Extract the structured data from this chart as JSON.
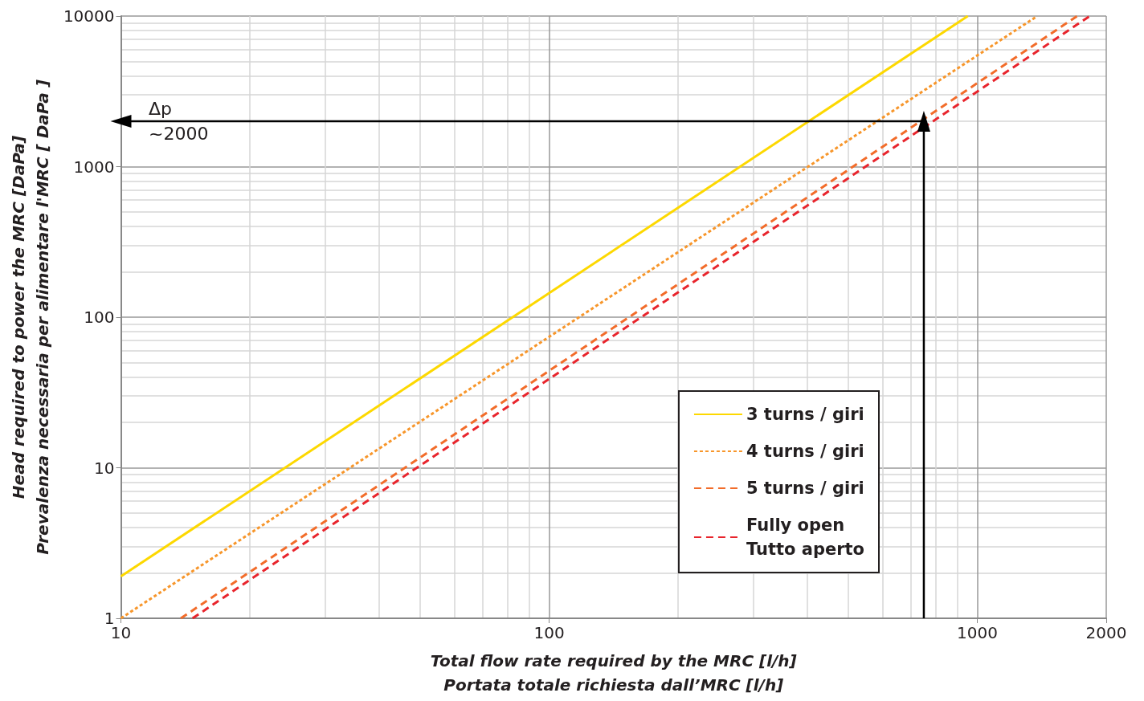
{
  "chart_data": {
    "type": "line",
    "xlabel": "Total flow rate required by the MRC [l/h]\nPortata totale richiesta dall’MRC [l/h]",
    "ylabel": "Head required to power the MRC [DaPa]\nPrevalenza necessaria per alimentare l'MRC [ DaPa ]",
    "series": [
      {
        "name": "3 turns / giri",
        "color": "#fdd800",
        "line_style": "solid",
        "x": [
          10,
          950
        ],
        "values": [
          1.9,
          10000
        ]
      },
      {
        "name": "4 turns / giri",
        "color": "#f7962b",
        "line_style": "dotted",
        "x": [
          10,
          1380
        ],
        "values": [
          1,
          10000
        ]
      },
      {
        "name": "5 turns / giri",
        "color": "#f26c2a",
        "line_style": "dashed",
        "x": [
          13.8,
          1710
        ],
        "values": [
          1,
          10000
        ]
      },
      {
        "name": "Fully open\nTutto aperto",
        "color": "#e8242c",
        "line_style": "dashed",
        "x": [
          14.7,
          1830
        ],
        "values": [
          1,
          10000
        ]
      },
      {
        "color": "#000000",
        "line_style": "solid",
        "marker": "triangle",
        "x": [
          750,
          750,
          10
        ],
        "values": [
          1,
          2000,
          2000
        ]
      }
    ],
    "annotations": [
      "Δp\n~2000"
    ],
    "log": "xy",
    "xlim": [
      10,
      2000
    ],
    "xticks": [
      10,
      100,
      1000,
      2000
    ],
    "ylim": [
      1,
      10000
    ],
    "yticks": [
      1,
      10,
      100,
      1000,
      10000
    ],
    "grid": true,
    "legend": "bottom right",
    "marker": "none"
  }
}
